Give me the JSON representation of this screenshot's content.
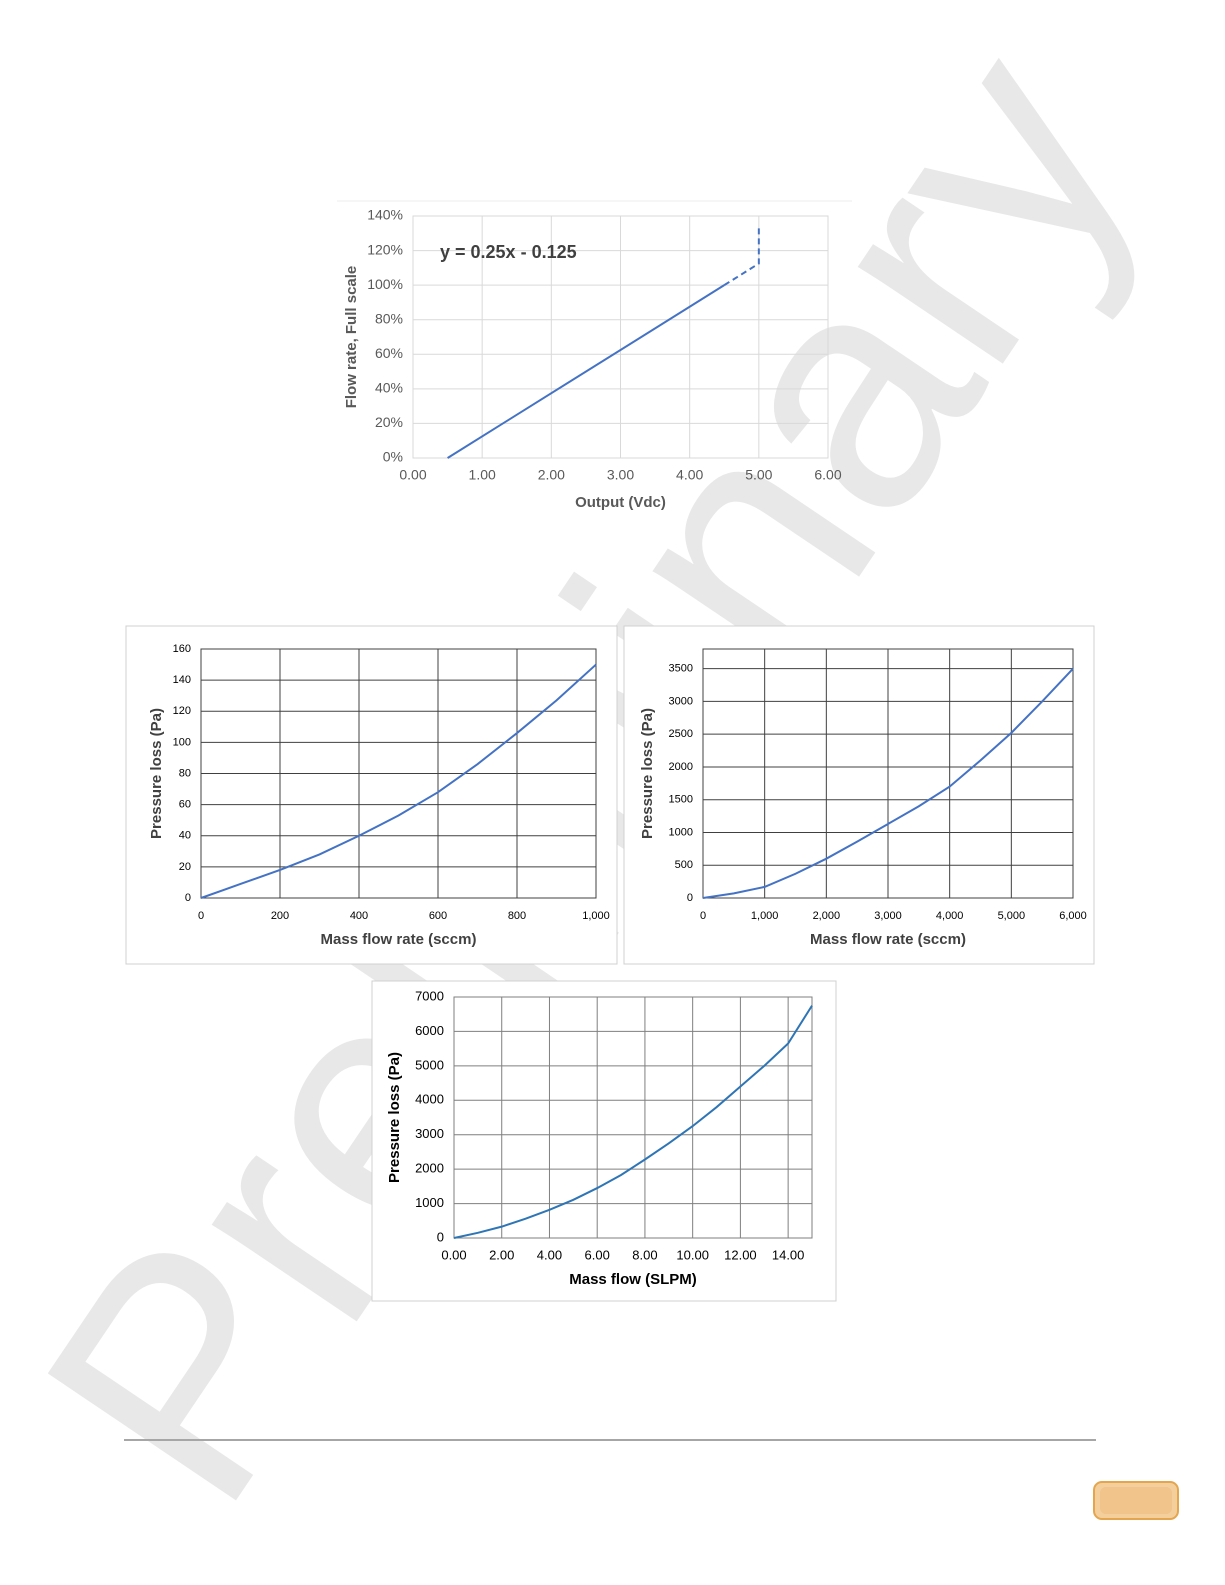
{
  "watermark": "Preliminary",
  "chart_data": [
    {
      "type": "line",
      "annotation": "y = 0.25x - 0.125",
      "x_label": "Output (Vdc)",
      "y_label": "Flow rate, Full scale",
      "xlim": [
        0,
        6
      ],
      "ylim": [
        0,
        140
      ],
      "xticks": [
        {
          "value": 0,
          "label": "0.00"
        },
        {
          "value": 1,
          "label": "1.00"
        },
        {
          "value": 2,
          "label": "2.00"
        },
        {
          "value": 3,
          "label": "3.00"
        },
        {
          "value": 4,
          "label": "4.00"
        },
        {
          "value": 5,
          "label": "5.00"
        },
        {
          "value": 6,
          "label": "6.00"
        }
      ],
      "yticks": [
        {
          "value": 0,
          "label": "0%"
        },
        {
          "value": 20,
          "label": "20%"
        },
        {
          "value": 40,
          "label": "40%"
        },
        {
          "value": 60,
          "label": "60%"
        },
        {
          "value": 80,
          "label": "80%"
        },
        {
          "value": 100,
          "label": "100%"
        },
        {
          "value": 120,
          "label": "120%"
        },
        {
          "value": 140,
          "label": "140%"
        }
      ],
      "grid": true,
      "grid_color": "#d9d9d9",
      "series": [
        {
          "color": "#4472c4",
          "dashed": false,
          "x": [
            0.5,
            4.5
          ],
          "values": [
            0,
            100
          ]
        },
        {
          "color": "#4472c4",
          "dashed": true,
          "x": [
            4.5,
            5,
            5
          ],
          "values": [
            100,
            112.5,
            135
          ]
        }
      ]
    },
    {
      "type": "line",
      "x_label": "Mass flow rate (sccm)",
      "y_label": "Pressure loss (Pa)",
      "xlim": [
        0,
        1000
      ],
      "ylim": [
        0,
        160
      ],
      "xticks": [
        0,
        200,
        400,
        600,
        800,
        {
          "value": 1000,
          "label": "1,000"
        }
      ],
      "yticks": [
        0,
        20,
        40,
        60,
        80,
        100,
        120,
        140,
        160
      ],
      "grid": true,
      "grid_color": "#404040",
      "x": [
        0,
        100,
        200,
        300,
        400,
        500,
        600,
        700,
        800,
        900,
        1000
      ],
      "series": [
        {
          "color": "#4472c4",
          "dashed": false,
          "values": [
            0,
            9,
            18,
            28,
            40,
            53,
            68,
            86,
            106,
            127,
            150
          ]
        }
      ]
    },
    {
      "type": "line",
      "x_label": "Mass flow rate (sccm)",
      "y_label": "Pressure loss (Pa)",
      "xlim": [
        0,
        6000
      ],
      "ylim": [
        0,
        3800
      ],
      "xticks": [
        0,
        {
          "value": 1000,
          "label": "1,000"
        },
        {
          "value": 2000,
          "label": "2,000"
        },
        {
          "value": 3000,
          "label": "3,000"
        },
        {
          "value": 4000,
          "label": "4,000"
        },
        {
          "value": 5000,
          "label": "5,000"
        },
        {
          "value": 6000,
          "label": "6,000"
        }
      ],
      "yticks": [
        0,
        500,
        1000,
        1500,
        2000,
        2500,
        3000,
        3500
      ],
      "grid": true,
      "grid_color": "#404040",
      "x": [
        0,
        500,
        1000,
        1500,
        2000,
        2500,
        3000,
        3500,
        4000,
        4500,
        5000,
        5500,
        6000
      ],
      "series": [
        {
          "color": "#4472c4",
          "dashed": false,
          "values": [
            0,
            70,
            170,
            370,
            600,
            860,
            1130,
            1400,
            1700,
            2100,
            2520,
            3000,
            3500
          ]
        }
      ]
    },
    {
      "type": "line",
      "x_label": "Mass flow (SLPM)",
      "y_label": "Pressure loss (Pa)",
      "xlim": [
        0,
        15
      ],
      "ylim": [
        0,
        7000
      ],
      "xticks": [
        {
          "value": 0,
          "label": "0.00"
        },
        {
          "value": 2,
          "label": "2.00"
        },
        {
          "value": 4,
          "label": "4.00"
        },
        {
          "value": 6,
          "label": "6.00"
        },
        {
          "value": 8,
          "label": "8.00"
        },
        {
          "value": 10,
          "label": "10.00"
        },
        {
          "value": 12,
          "label": "12.00"
        },
        {
          "value": 14,
          "label": "14.00"
        }
      ],
      "yticks": [
        0,
        1000,
        2000,
        3000,
        4000,
        5000,
        6000,
        7000
      ],
      "grid": true,
      "grid_color": "#7f7f7f",
      "x": [
        0,
        1,
        2,
        3,
        4,
        5,
        6,
        7,
        8,
        9,
        10,
        11,
        12,
        13,
        14,
        15
      ],
      "series": [
        {
          "color": "#2e75b6",
          "dashed": false,
          "values": [
            0,
            150,
            330,
            560,
            820,
            1110,
            1450,
            1830,
            2280,
            2750,
            3250,
            3800,
            4400,
            5000,
            5650,
            6750
          ]
        }
      ]
    }
  ]
}
